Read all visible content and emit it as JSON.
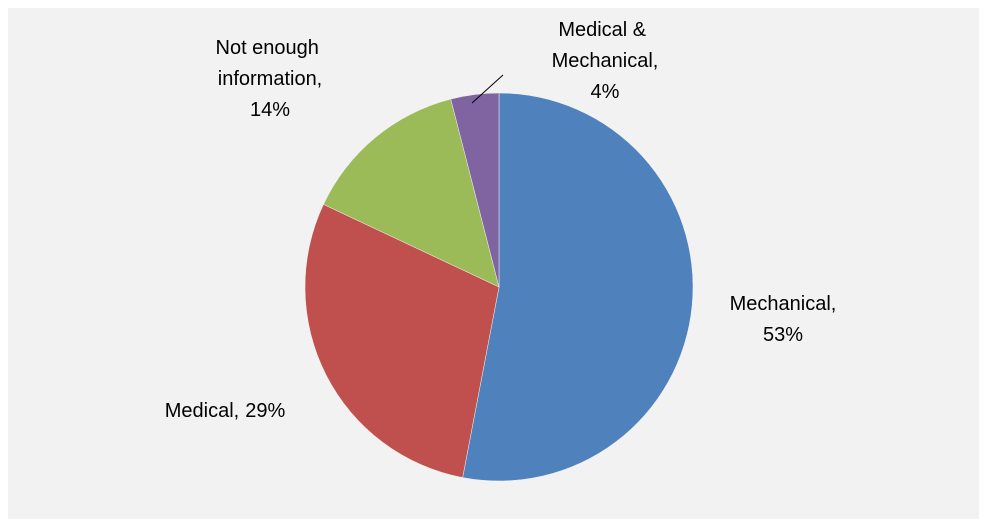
{
  "chart_data": {
    "type": "pie",
    "categories": [
      "Mechanical,",
      "Medical,",
      "Not enough\ninformation,",
      "Medical &\nMechanical,"
    ],
    "values": [
      53,
      29,
      14,
      4
    ],
    "value_labels": [
      "53%",
      "29%",
      "14%",
      "4%"
    ],
    "colors": [
      "#4f81bd",
      "#c0504d",
      "#9bbb59",
      "#8064a2"
    ]
  }
}
